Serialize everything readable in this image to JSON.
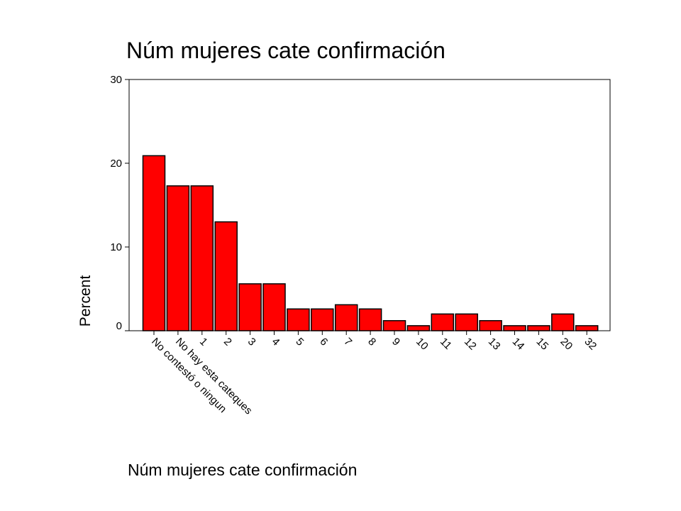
{
  "chart_data": {
    "type": "bar",
    "title": "Núm mujeres cate confirmación",
    "xlabel": "Núm mujeres cate confirmación",
    "ylabel": "Percent",
    "ylim": [
      0,
      30
    ],
    "yticks": [
      0,
      10,
      20,
      30
    ],
    "grid": false,
    "categories": [
      "No contestó o ningun",
      "No hay esta cateques",
      "1",
      "2",
      "3",
      "4",
      "5",
      "6",
      "7",
      "8",
      "9",
      "10",
      "11",
      "12",
      "13",
      "14",
      "15",
      "20",
      "32"
    ],
    "values": [
      20.9,
      17.3,
      17.3,
      13.0,
      5.6,
      5.6,
      2.6,
      2.6,
      3.1,
      2.6,
      1.2,
      0.6,
      2.0,
      2.0,
      1.2,
      0.6,
      0.6,
      2.0,
      0.6
    ],
    "bar_color": "#ff0000"
  }
}
